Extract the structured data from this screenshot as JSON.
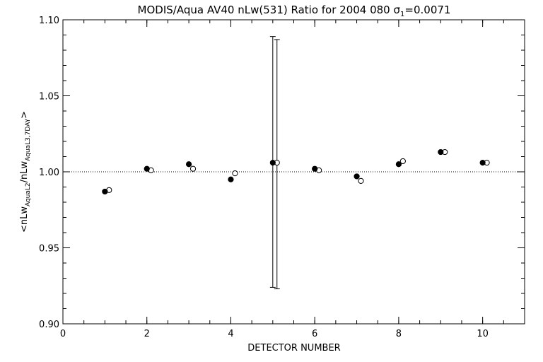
{
  "chart_data": {
    "type": "scatter",
    "title": "MODIS/Aqua AV40 nLw(531) Ratio for 2004 080 σ",
    "title_sub": "1",
    "title_suffix": "=0.0071",
    "xlabel": "DETECTOR NUMBER",
    "ylabel": {
      "prefix": "<nLw",
      "sub1": "AquaL2",
      "mid": "/nLw",
      "sub2": "AquaL3,7DAY",
      "suffix": ">"
    },
    "xlim": [
      0,
      11
    ],
    "ylim": [
      0.9,
      1.1
    ],
    "x_ticks": [
      0,
      2,
      4,
      6,
      8,
      10
    ],
    "x_tick_labels": [
      "0",
      "2",
      "4",
      "6",
      "8",
      "10"
    ],
    "y_ticks": [
      0.9,
      0.95,
      1.0,
      1.05,
      1.1
    ],
    "y_tick_labels": [
      "0.90",
      "0.95",
      "1.00",
      "1.05",
      "1.10"
    ],
    "reference_line": 1.0,
    "series": [
      {
        "marker": "filled-circle",
        "x": [
          1,
          2,
          3,
          4,
          5,
          6,
          7,
          8,
          9,
          10
        ],
        "y": [
          0.987,
          1.002,
          1.005,
          0.995,
          1.006,
          1.002,
          0.997,
          1.005,
          1.013,
          1.006
        ],
        "error_bars": [
          null,
          null,
          null,
          null,
          [
            0.924,
            1.089
          ],
          null,
          null,
          null,
          null,
          null
        ]
      },
      {
        "marker": "open-circle",
        "x": [
          1.1,
          2.1,
          3.1,
          4.1,
          5.1,
          6.1,
          7.1,
          8.1,
          9.1,
          10.1
        ],
        "y": [
          0.988,
          1.001,
          1.002,
          0.999,
          1.006,
          1.001,
          0.994,
          1.007,
          1.013,
          1.006
        ],
        "error_bars": [
          null,
          null,
          null,
          null,
          [
            0.923,
            1.087
          ],
          null,
          null,
          null,
          null,
          null
        ]
      }
    ],
    "grid": false,
    "colors": {
      "marker": "#000000",
      "background": "#ffffff"
    }
  }
}
